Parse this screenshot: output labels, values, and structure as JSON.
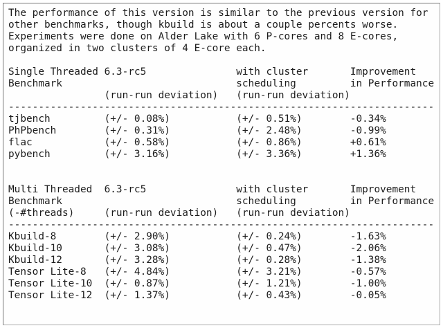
{
  "page": {
    "background": "#ffffff",
    "text_color": "#1c1c1c",
    "border_color_dark": "#757575",
    "border_color_light": "#ababab"
  },
  "intro_lines": [
    "The performance of this version is similar to the previous version for",
    "other benchmarks, though kbuild is about a couple percents worse.",
    "Experiments were done on Alder Lake with 6 P-cores and 8 E-cores,",
    "organized in two clusters of 4 E-core each."
  ],
  "separator": "-----------------------------------------------------------------------",
  "tables": [
    {
      "name": "single-threaded",
      "header_lines": [
        [
          "Single Threaded",
          "6.3-rc5",
          "with cluster",
          "Improvement"
        ],
        [
          "Benchmark",
          "",
          "scheduling",
          "in Performance"
        ],
        [
          "",
          "(run-run deviation)",
          "(run-run deviation)",
          ""
        ]
      ],
      "rows": [
        [
          "tjbench",
          "(+/- 0.08%)",
          "(+/- 0.51%)",
          "-0.34%"
        ],
        [
          "PhPbench",
          "(+/- 0.31%)",
          "(+/- 2.48%)",
          "-0.99%"
        ],
        [
          "flac",
          "(+/- 0.58%)",
          "(+/- 0.86%)",
          "+0.61%"
        ],
        [
          "pybench",
          "(+/- 3.16%)",
          "(+/- 3.36%)",
          "+1.36%"
        ]
      ]
    },
    {
      "name": "multi-threaded",
      "header_lines": [
        [
          "Multi Threaded",
          "6.3-rc5",
          "with cluster",
          "Improvement"
        ],
        [
          "Benchmark",
          "",
          "scheduling",
          "in Performance"
        ],
        [
          "(-#threads)",
          "(run-run deviation)",
          "(run-run deviation)",
          ""
        ]
      ],
      "rows": [
        [
          "Kbuild-8",
          "(+/- 2.90%)",
          "(+/- 0.24%)",
          "-1.63%"
        ],
        [
          "Kbuild-10",
          "(+/- 3.08%)",
          "(+/- 0.47%)",
          "-2.06%"
        ],
        [
          "Kbuild-12",
          "(+/- 3.28%)",
          "(+/- 0.28%)",
          "-1.38%"
        ],
        [
          "Tensor Lite-8",
          "(+/- 4.84%)",
          "(+/- 3.21%)",
          "-0.57%"
        ],
        [
          "Tensor Lite-10",
          "(+/- 0.87%)",
          "(+/- 1.21%)",
          "-1.00%"
        ],
        [
          "Tensor Lite-12",
          "(+/- 1.37%)",
          "(+/- 0.43%)",
          "-0.05%"
        ]
      ]
    }
  ]
}
